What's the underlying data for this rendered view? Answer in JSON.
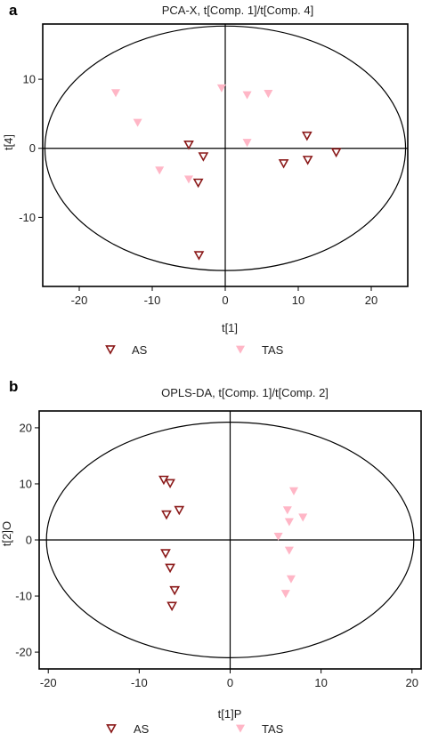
{
  "chart_data": [
    {
      "panel_label": "a",
      "type": "scatter",
      "title": "PCA-X, t[Comp. 1]/t[Comp. 4]",
      "xlabel": "t[1]",
      "ylabel": "t[4]",
      "xlim": [
        -25,
        25
      ],
      "ylim": [
        -20,
        18
      ],
      "xticks": [
        -20,
        -10,
        0,
        10,
        20
      ],
      "yticks": [
        -10,
        0,
        10
      ],
      "ellipse": {
        "rx": 24.7,
        "ry": 17.7
      },
      "legend": "bottom",
      "series": [
        {
          "name": "AS",
          "marker": "triangle-down-open",
          "color": "#8b1a1a",
          "points": [
            [
              -5,
              0.5
            ],
            [
              -3,
              -1.2
            ],
            [
              -3.7,
              -5
            ],
            [
              -3.6,
              -15.5
            ],
            [
              8,
              -2.2
            ],
            [
              11.2,
              1.8
            ],
            [
              11.3,
              -1.7
            ],
            [
              15.2,
              -0.6
            ]
          ]
        },
        {
          "name": "TAS",
          "marker": "triangle-down-filled",
          "color": "#ffb6c6",
          "points": [
            [
              -15,
              8
            ],
            [
              -12,
              3.7
            ],
            [
              -9,
              -3.2
            ],
            [
              -5,
              -4.5
            ],
            [
              -0.5,
              8.7
            ],
            [
              3,
              7.7
            ],
            [
              3,
              0.8
            ],
            [
              5.9,
              7.9
            ]
          ]
        }
      ]
    },
    {
      "panel_label": "b",
      "type": "scatter",
      "title": "OPLS-DA, t[Comp. 1]/t[Comp. 2]",
      "xlabel": "t[1]P",
      "ylabel": "t[2]O",
      "xlim": [
        -21,
        21
      ],
      "ylim": [
        -23,
        23
      ],
      "xticks": [
        -20,
        -10,
        0,
        10,
        20
      ],
      "yticks": [
        -20,
        -10,
        0,
        10,
        20
      ],
      "ellipse": {
        "rx": 20.2,
        "ry": 21
      },
      "legend": "bottom",
      "series": [
        {
          "name": "AS",
          "marker": "triangle-down-open",
          "color": "#8b1a1a",
          "points": [
            [
              -7.3,
              10.7
            ],
            [
              -6.6,
              10.1
            ],
            [
              -5.6,
              5.3
            ],
            [
              -7,
              4.5
            ],
            [
              -7.1,
              -2.4
            ],
            [
              -6.6,
              -5
            ],
            [
              -6.1,
              -9
            ],
            [
              -6.4,
              -11.8
            ]
          ]
        },
        {
          "name": "TAS",
          "marker": "triangle-down-filled",
          "color": "#ffb6c6",
          "points": [
            [
              7,
              8.7
            ],
            [
              6.3,
              5.3
            ],
            [
              6.5,
              3.2
            ],
            [
              8,
              4
            ],
            [
              5.3,
              0.6
            ],
            [
              6.5,
              -1.9
            ],
            [
              6.7,
              -7
            ],
            [
              6.1,
              -9.6
            ]
          ]
        }
      ]
    }
  ]
}
